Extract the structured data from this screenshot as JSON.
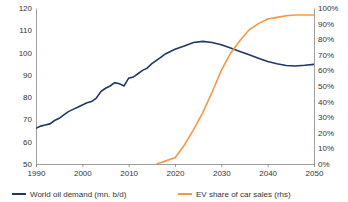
{
  "chart_data": {
    "type": "line",
    "x": [
      1990,
      1991,
      1992,
      1993,
      1994,
      1995,
      1996,
      1997,
      1998,
      1999,
      2000,
      2001,
      2002,
      2003,
      2004,
      2005,
      2006,
      2007,
      2008,
      2009,
      2010,
      2011,
      2012,
      2013,
      2014,
      2015,
      2016,
      2017,
      2018,
      2019,
      2020,
      2022,
      2024,
      2026,
      2028,
      2030,
      2032,
      2034,
      2036,
      2038,
      2040,
      2042,
      2044,
      2046,
      2048,
      2050
    ],
    "series": [
      {
        "name": "World oil demand (mn. b/d)",
        "color": "#1f3864",
        "values": [
          66,
          67,
          67.5,
          68,
          69.5,
          70.5,
          72,
          73.5,
          74.5,
          75.5,
          76.5,
          77.5,
          78,
          79.5,
          82.5,
          84,
          85,
          86.5,
          86,
          85,
          88.5,
          89,
          90.5,
          92,
          93,
          95,
          96.5,
          98,
          99.5,
          100.5,
          101.5,
          103,
          104.5,
          105,
          104.5,
          103.5,
          102,
          100.5,
          99,
          97.5,
          96,
          95,
          94.2,
          94,
          94.3,
          94.7
        ]
      },
      {
        "name": "EV share of car sales (rhs)",
        "color": "#f79646",
        "axis": "y2",
        "values": [
          null,
          null,
          null,
          null,
          null,
          null,
          null,
          null,
          null,
          null,
          null,
          null,
          null,
          null,
          null,
          null,
          null,
          null,
          null,
          null,
          null,
          null,
          null,
          null,
          null,
          null,
          0,
          1,
          2,
          3,
          4,
          12,
          22,
          33,
          46,
          60,
          71,
          79,
          86,
          90,
          93,
          94,
          95,
          95.5,
          95.5,
          95.5
        ]
      }
    ],
    "xlim": [
      1990,
      2050
    ],
    "xticks": [
      1990,
      2000,
      2010,
      2020,
      2030,
      2040,
      2050
    ],
    "ylim": [
      50,
      120
    ],
    "yticks": [
      50,
      60,
      70,
      80,
      90,
      100,
      110,
      120
    ],
    "y2lim": [
      0,
      100
    ],
    "y2ticks": [
      {
        "value": 0,
        "label": "0%"
      },
      {
        "value": 10,
        "label": "10%"
      },
      {
        "value": 20,
        "label": "20%"
      },
      {
        "value": 30,
        "label": "30%"
      },
      {
        "value": 40,
        "label": "40%"
      },
      {
        "value": 50,
        "label": "50%"
      },
      {
        "value": 60,
        "label": "60%"
      },
      {
        "value": 70,
        "label": "70%"
      },
      {
        "value": 80,
        "label": "80%"
      },
      {
        "value": 90,
        "label": "90%"
      },
      {
        "value": 100,
        "label": "100%"
      }
    ],
    "grid": false,
    "legend": "bottom"
  }
}
